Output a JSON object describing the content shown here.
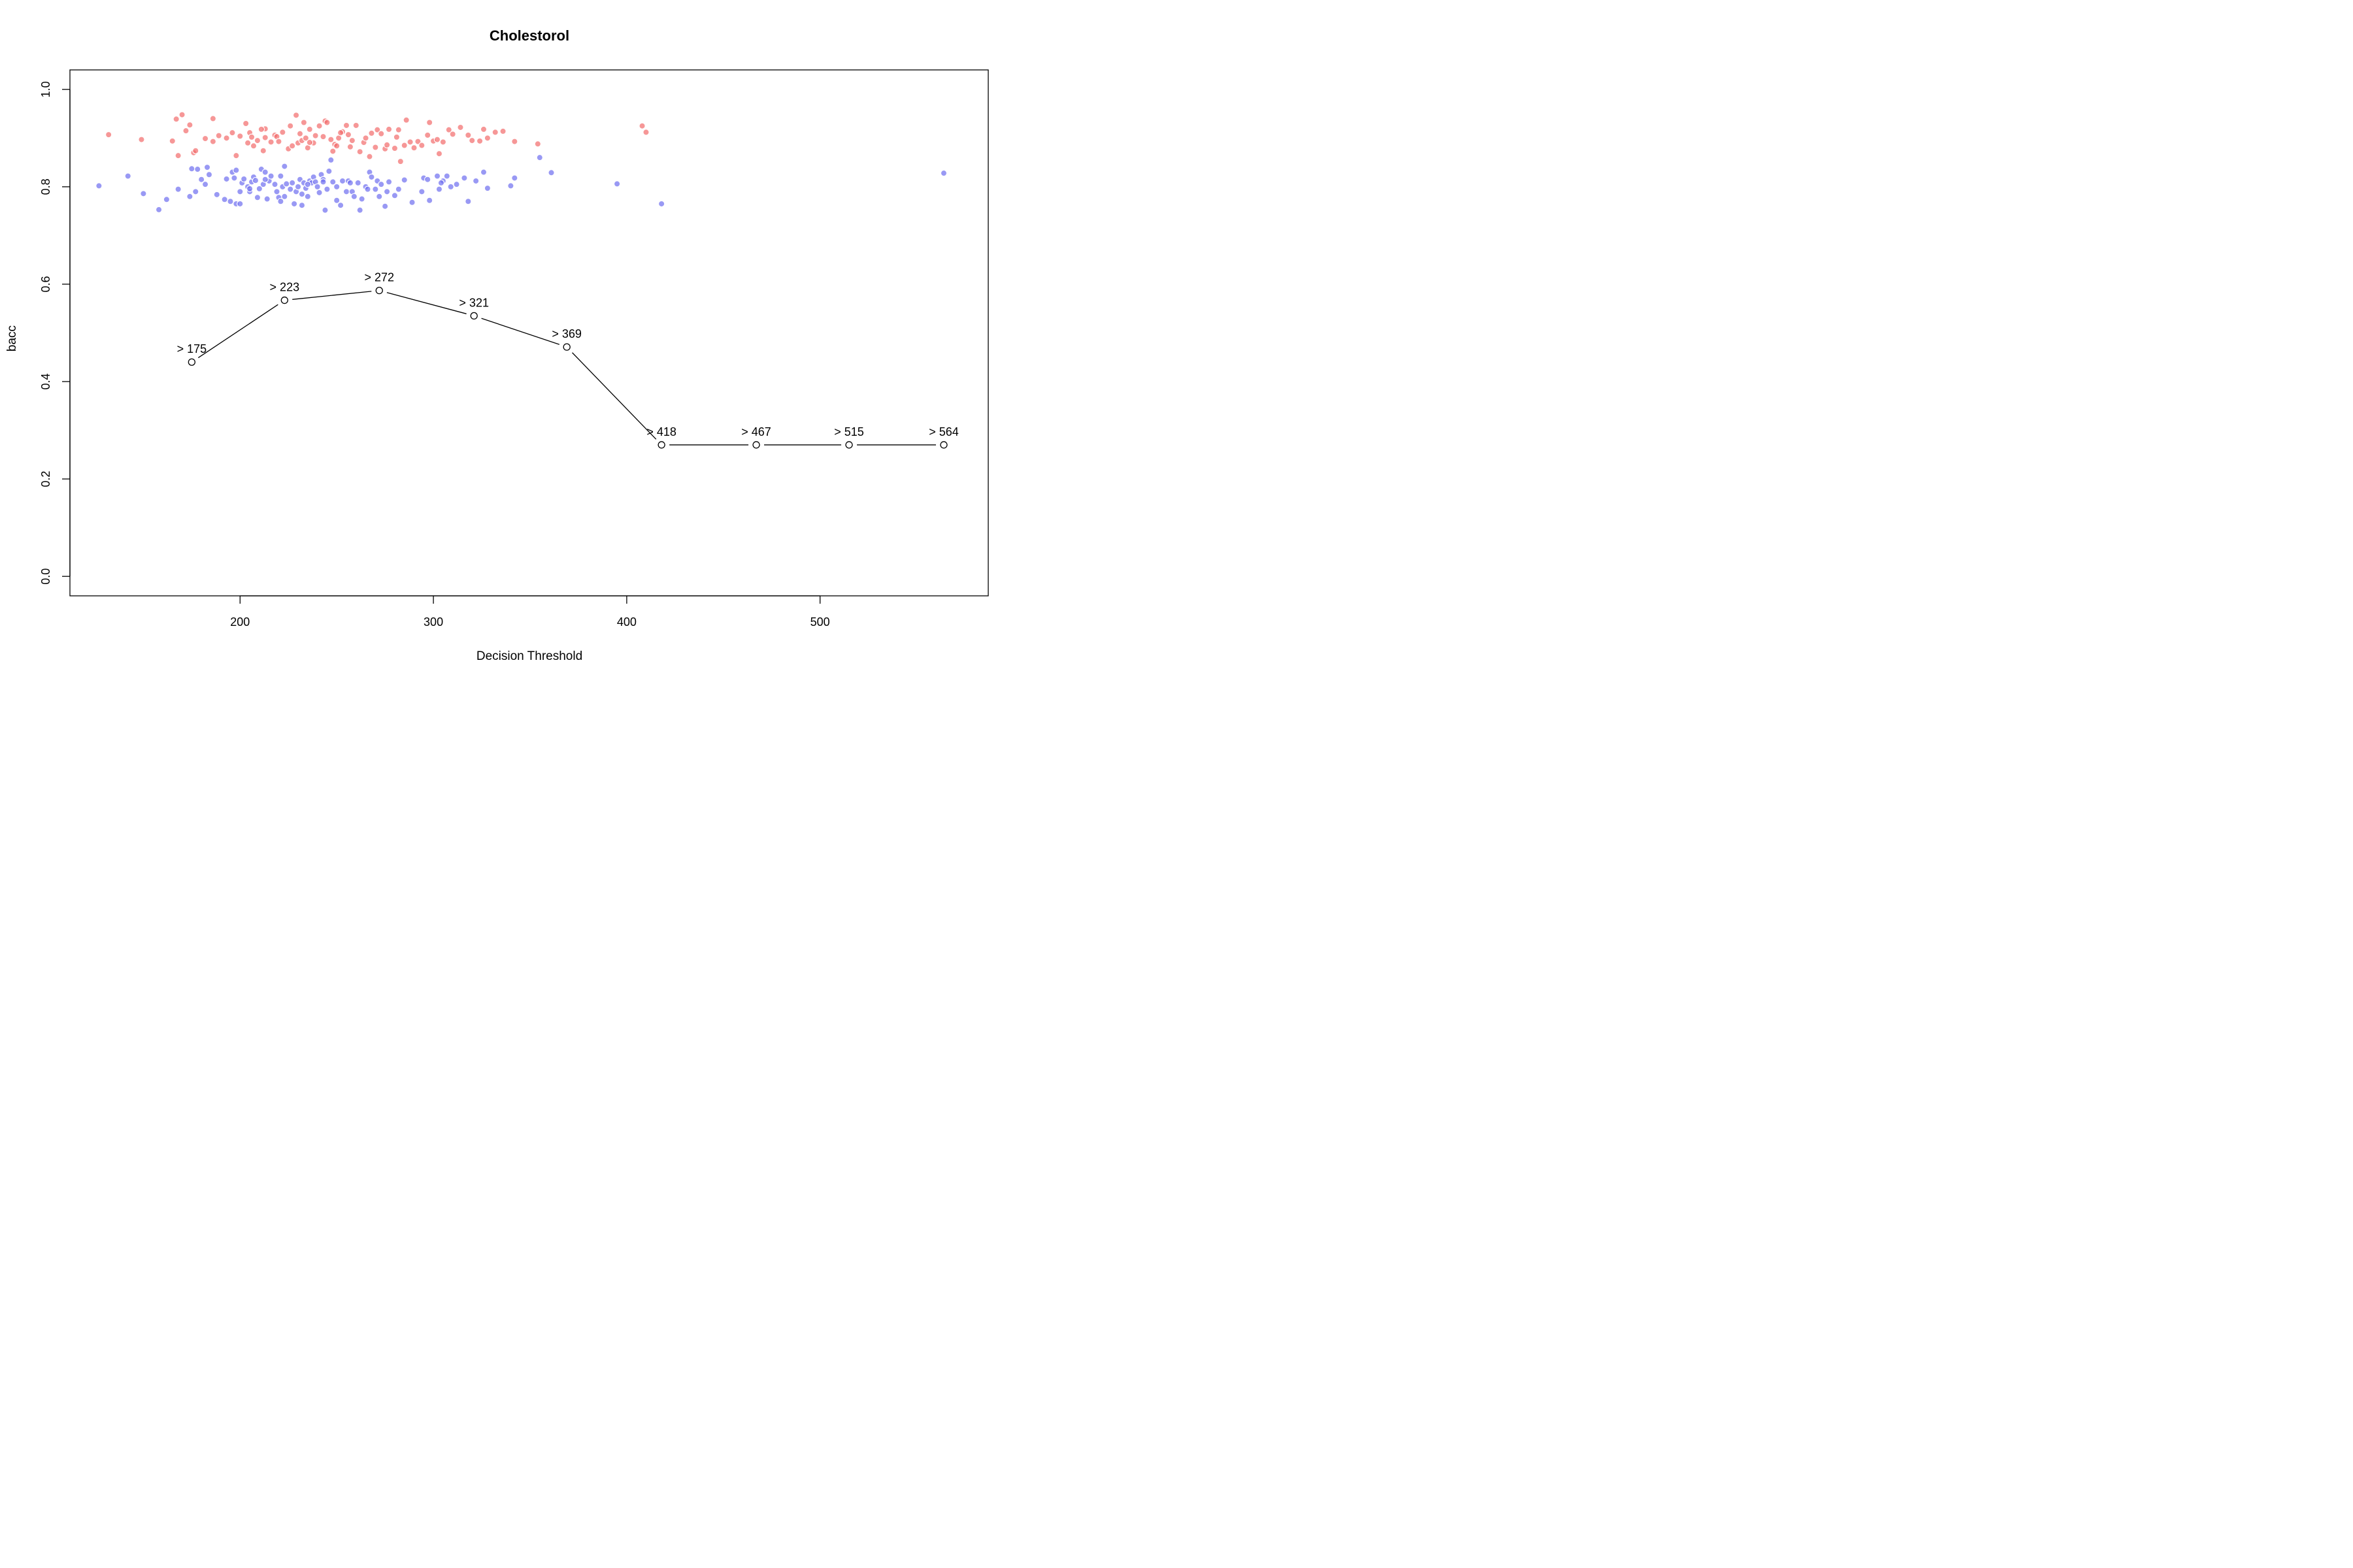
{
  "chart_data": {
    "type": "scatter",
    "title": "Cholestorol",
    "xlabel": "Decision Threshold",
    "ylabel": "bacc",
    "xlim": [
      112,
      587
    ],
    "ylim": [
      -0.04,
      1.04
    ],
    "x_ticks": [
      200,
      300,
      400,
      500
    ],
    "y_ticks": [
      0.0,
      0.2,
      0.4,
      0.6,
      0.8,
      1.0
    ],
    "x_tick_labels": [
      "200",
      "300",
      "400",
      "500"
    ],
    "y_tick_labels": [
      "0.0",
      "0.2",
      "0.4",
      "0.6",
      "0.8",
      "1.0"
    ],
    "grid": false,
    "legend": "none",
    "colors": {
      "red_points": "#F26B6B",
      "blue_points": "#6E6EF0",
      "line": "#000000",
      "marker_fill": "#ffffff"
    },
    "threshold_line": {
      "labels": [
        "> 175",
        "> 223",
        "> 272",
        "> 321",
        "> 369",
        "> 418",
        "> 467",
        "> 515",
        "> 564"
      ],
      "x": [
        175,
        223,
        272,
        321,
        369,
        418,
        467,
        515,
        564
      ],
      "y": [
        0.44,
        0.567,
        0.587,
        0.535,
        0.471,
        0.27,
        0.27,
        0.27,
        0.27
      ]
    },
    "scatter_red": [
      [
        132,
        0.907
      ],
      [
        149,
        0.897
      ],
      [
        165,
        0.894
      ],
      [
        167,
        0.939
      ],
      [
        168,
        0.864
      ],
      [
        170,
        0.948
      ],
      [
        172,
        0.915
      ],
      [
        174,
        0.927
      ],
      [
        176,
        0.87
      ],
      [
        177,
        0.874
      ],
      [
        182,
        0.899
      ],
      [
        186,
        0.893
      ],
      [
        186,
        0.94
      ],
      [
        189,
        0.905
      ],
      [
        193,
        0.9
      ],
      [
        196,
        0.911
      ],
      [
        198,
        0.864
      ],
      [
        200,
        0.904
      ],
      [
        203,
        0.93
      ],
      [
        204,
        0.89
      ],
      [
        205,
        0.911
      ],
      [
        206,
        0.902
      ],
      [
        207,
        0.884
      ],
      [
        209,
        0.895
      ],
      [
        212,
        0.874
      ],
      [
        213,
        0.901
      ],
      [
        213,
        0.919
      ],
      [
        216,
        0.892
      ],
      [
        218,
        0.906
      ],
      [
        219,
        0.903
      ],
      [
        220,
        0.893
      ],
      [
        222,
        0.912
      ],
      [
        225,
        0.878
      ],
      [
        226,
        0.925
      ],
      [
        227,
        0.884
      ],
      [
        229,
        0.947
      ],
      [
        230,
        0.89
      ],
      [
        231,
        0.909
      ],
      [
        232,
        0.895
      ],
      [
        233,
        0.932
      ],
      [
        234,
        0.9
      ],
      [
        235,
        0.88
      ],
      [
        236,
        0.918
      ],
      [
        238,
        0.89
      ],
      [
        239,
        0.905
      ],
      [
        241,
        0.925
      ],
      [
        243,
        0.903
      ],
      [
        244,
        0.935
      ],
      [
        245,
        0.932
      ],
      [
        247,
        0.897
      ],
      [
        248,
        0.873
      ],
      [
        249,
        0.887
      ],
      [
        250,
        0.884
      ],
      [
        251,
        0.9
      ],
      [
        253,
        0.913
      ],
      [
        255,
        0.926
      ],
      [
        256,
        0.907
      ],
      [
        257,
        0.882
      ],
      [
        258,
        0.895
      ],
      [
        260,
        0.926
      ],
      [
        262,
        0.872
      ],
      [
        264,
        0.891
      ],
      [
        265,
        0.9
      ],
      [
        267,
        0.862
      ],
      [
        268,
        0.91
      ],
      [
        270,
        0.881
      ],
      [
        271,
        0.917
      ],
      [
        273,
        0.909
      ],
      [
        275,
        0.878
      ],
      [
        276,
        0.886
      ],
      [
        277,
        0.918
      ],
      [
        280,
        0.879
      ],
      [
        282,
        0.917
      ],
      [
        283,
        0.852
      ],
      [
        285,
        0.885
      ],
      [
        286,
        0.937
      ],
      [
        288,
        0.892
      ],
      [
        290,
        0.88
      ],
      [
        292,
        0.893
      ],
      [
        294,
        0.885
      ],
      [
        297,
        0.906
      ],
      [
        298,
        0.932
      ],
      [
        300,
        0.894
      ],
      [
        303,
        0.868
      ],
      [
        305,
        0.892
      ],
      [
        308,
        0.917
      ],
      [
        310,
        0.908
      ],
      [
        314,
        0.922
      ],
      [
        318,
        0.906
      ],
      [
        320,
        0.895
      ],
      [
        324,
        0.894
      ],
      [
        326,
        0.918
      ],
      [
        328,
        0.9
      ],
      [
        332,
        0.912
      ],
      [
        336,
        0.914
      ],
      [
        342,
        0.893
      ],
      [
        354,
        0.888
      ],
      [
        408,
        0.925
      ],
      [
        410,
        0.912
      ],
      [
        236,
        0.891
      ],
      [
        252,
        0.911
      ],
      [
        281,
        0.902
      ],
      [
        302,
        0.897
      ],
      [
        211,
        0.918
      ]
    ],
    "scatter_blue": [
      [
        127,
        0.802
      ],
      [
        142,
        0.822
      ],
      [
        150,
        0.786
      ],
      [
        158,
        0.753
      ],
      [
        162,
        0.774
      ],
      [
        168,
        0.795
      ],
      [
        174,
        0.78
      ],
      [
        175,
        0.837
      ],
      [
        177,
        0.79
      ],
      [
        178,
        0.836
      ],
      [
        180,
        0.815
      ],
      [
        182,
        0.805
      ],
      [
        183,
        0.84
      ],
      [
        184,
        0.825
      ],
      [
        188,
        0.784
      ],
      [
        192,
        0.774
      ],
      [
        193,
        0.816
      ],
      [
        195,
        0.77
      ],
      [
        196,
        0.83
      ],
      [
        197,
        0.818
      ],
      [
        198,
        0.765
      ],
      [
        198,
        0.834
      ],
      [
        200,
        0.79
      ],
      [
        200,
        0.765
      ],
      [
        201,
        0.808
      ],
      [
        202,
        0.816
      ],
      [
        204,
        0.8
      ],
      [
        205,
        0.79
      ],
      [
        206,
        0.81
      ],
      [
        207,
        0.82
      ],
      [
        208,
        0.813
      ],
      [
        209,
        0.778
      ],
      [
        210,
        0.796
      ],
      [
        211,
        0.836
      ],
      [
        212,
        0.805
      ],
      [
        213,
        0.83
      ],
      [
        214,
        0.775
      ],
      [
        215,
        0.812
      ],
      [
        216,
        0.822
      ],
      [
        218,
        0.805
      ],
      [
        219,
        0.79
      ],
      [
        220,
        0.778
      ],
      [
        221,
        0.77
      ],
      [
        222,
        0.8
      ],
      [
        223,
        0.78
      ],
      [
        223,
        0.842
      ],
      [
        224,
        0.806
      ],
      [
        226,
        0.795
      ],
      [
        227,
        0.808
      ],
      [
        228,
        0.765
      ],
      [
        229,
        0.79
      ],
      [
        230,
        0.8
      ],
      [
        231,
        0.815
      ],
      [
        232,
        0.785
      ],
      [
        232,
        0.762
      ],
      [
        233,
        0.808
      ],
      [
        234,
        0.797
      ],
      [
        235,
        0.78
      ],
      [
        236,
        0.812
      ],
      [
        237,
        0.808
      ],
      [
        238,
        0.82
      ],
      [
        239,
        0.81
      ],
      [
        240,
        0.8
      ],
      [
        241,
        0.788
      ],
      [
        242,
        0.825
      ],
      [
        243,
        0.815
      ],
      [
        244,
        0.752
      ],
      [
        245,
        0.795
      ],
      [
        246,
        0.832
      ],
      [
        247,
        0.855
      ],
      [
        248,
        0.81
      ],
      [
        250,
        0.8
      ],
      [
        250,
        0.772
      ],
      [
        252,
        0.762
      ],
      [
        253,
        0.812
      ],
      [
        255,
        0.79
      ],
      [
        256,
        0.812
      ],
      [
        258,
        0.79
      ],
      [
        259,
        0.78
      ],
      [
        261,
        0.808
      ],
      [
        262,
        0.752
      ],
      [
        263,
        0.775
      ],
      [
        265,
        0.8
      ],
      [
        267,
        0.83
      ],
      [
        268,
        0.82
      ],
      [
        270,
        0.795
      ],
      [
        271,
        0.812
      ],
      [
        272,
        0.78
      ],
      [
        273,
        0.805
      ],
      [
        275,
        0.76
      ],
      [
        276,
        0.79
      ],
      [
        277,
        0.81
      ],
      [
        280,
        0.782
      ],
      [
        282,
        0.795
      ],
      [
        285,
        0.814
      ],
      [
        289,
        0.768
      ],
      [
        294,
        0.79
      ],
      [
        295,
        0.818
      ],
      [
        298,
        0.772
      ],
      [
        302,
        0.822
      ],
      [
        303,
        0.795
      ],
      [
        305,
        0.812
      ],
      [
        307,
        0.822
      ],
      [
        309,
        0.8
      ],
      [
        312,
        0.805
      ],
      [
        316,
        0.818
      ],
      [
        318,
        0.77
      ],
      [
        322,
        0.812
      ],
      [
        326,
        0.83
      ],
      [
        328,
        0.797
      ],
      [
        340,
        0.802
      ],
      [
        342,
        0.818
      ],
      [
        355,
        0.86
      ],
      [
        361,
        0.829
      ],
      [
        395,
        0.806
      ],
      [
        418,
        0.765
      ],
      [
        564,
        0.828
      ],
      [
        205,
        0.796
      ],
      [
        213,
        0.815
      ],
      [
        221,
        0.822
      ],
      [
        235,
        0.805
      ],
      [
        243,
        0.81
      ],
      [
        257,
        0.808
      ],
      [
        266,
        0.795
      ],
      [
        304,
        0.808
      ],
      [
        297,
        0.815
      ]
    ]
  }
}
